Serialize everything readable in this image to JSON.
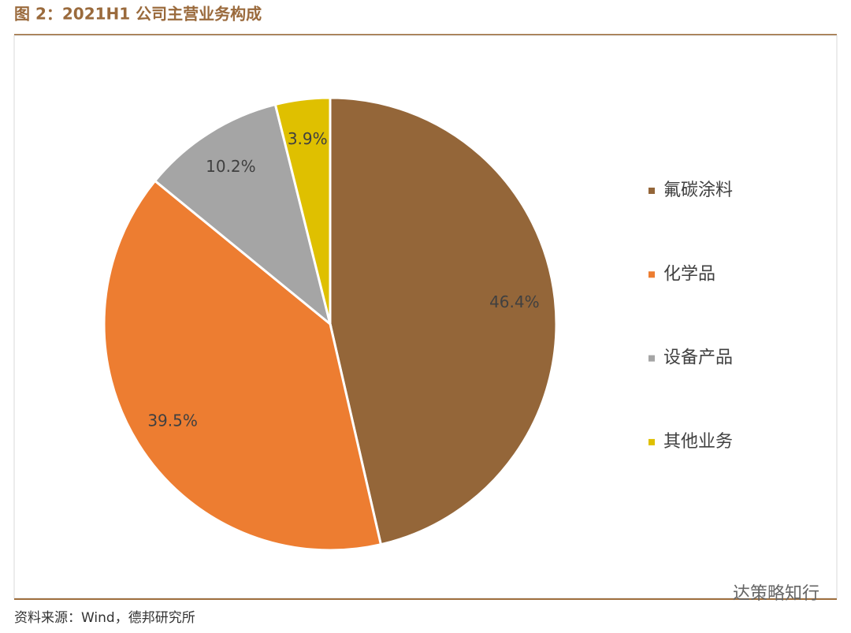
{
  "chart_data": {
    "type": "pie",
    "title": "图 2：2021H1 公司主营业务构成",
    "categories": [
      "氟碳涂料",
      "化学品",
      "设备产品",
      "其他业务"
    ],
    "values": [
      46.4,
      39.5,
      10.2,
      3.9
    ],
    "value_labels": [
      "46.4%",
      "39.5%",
      "10.2%",
      "3.9%"
    ],
    "colors": [
      "#946639",
      "#ED7D31",
      "#A5A5A5",
      "#DFC000"
    ],
    "legend": "right",
    "source": "资料来源：Wind，德邦研究所",
    "watermark": "达策略知行"
  }
}
